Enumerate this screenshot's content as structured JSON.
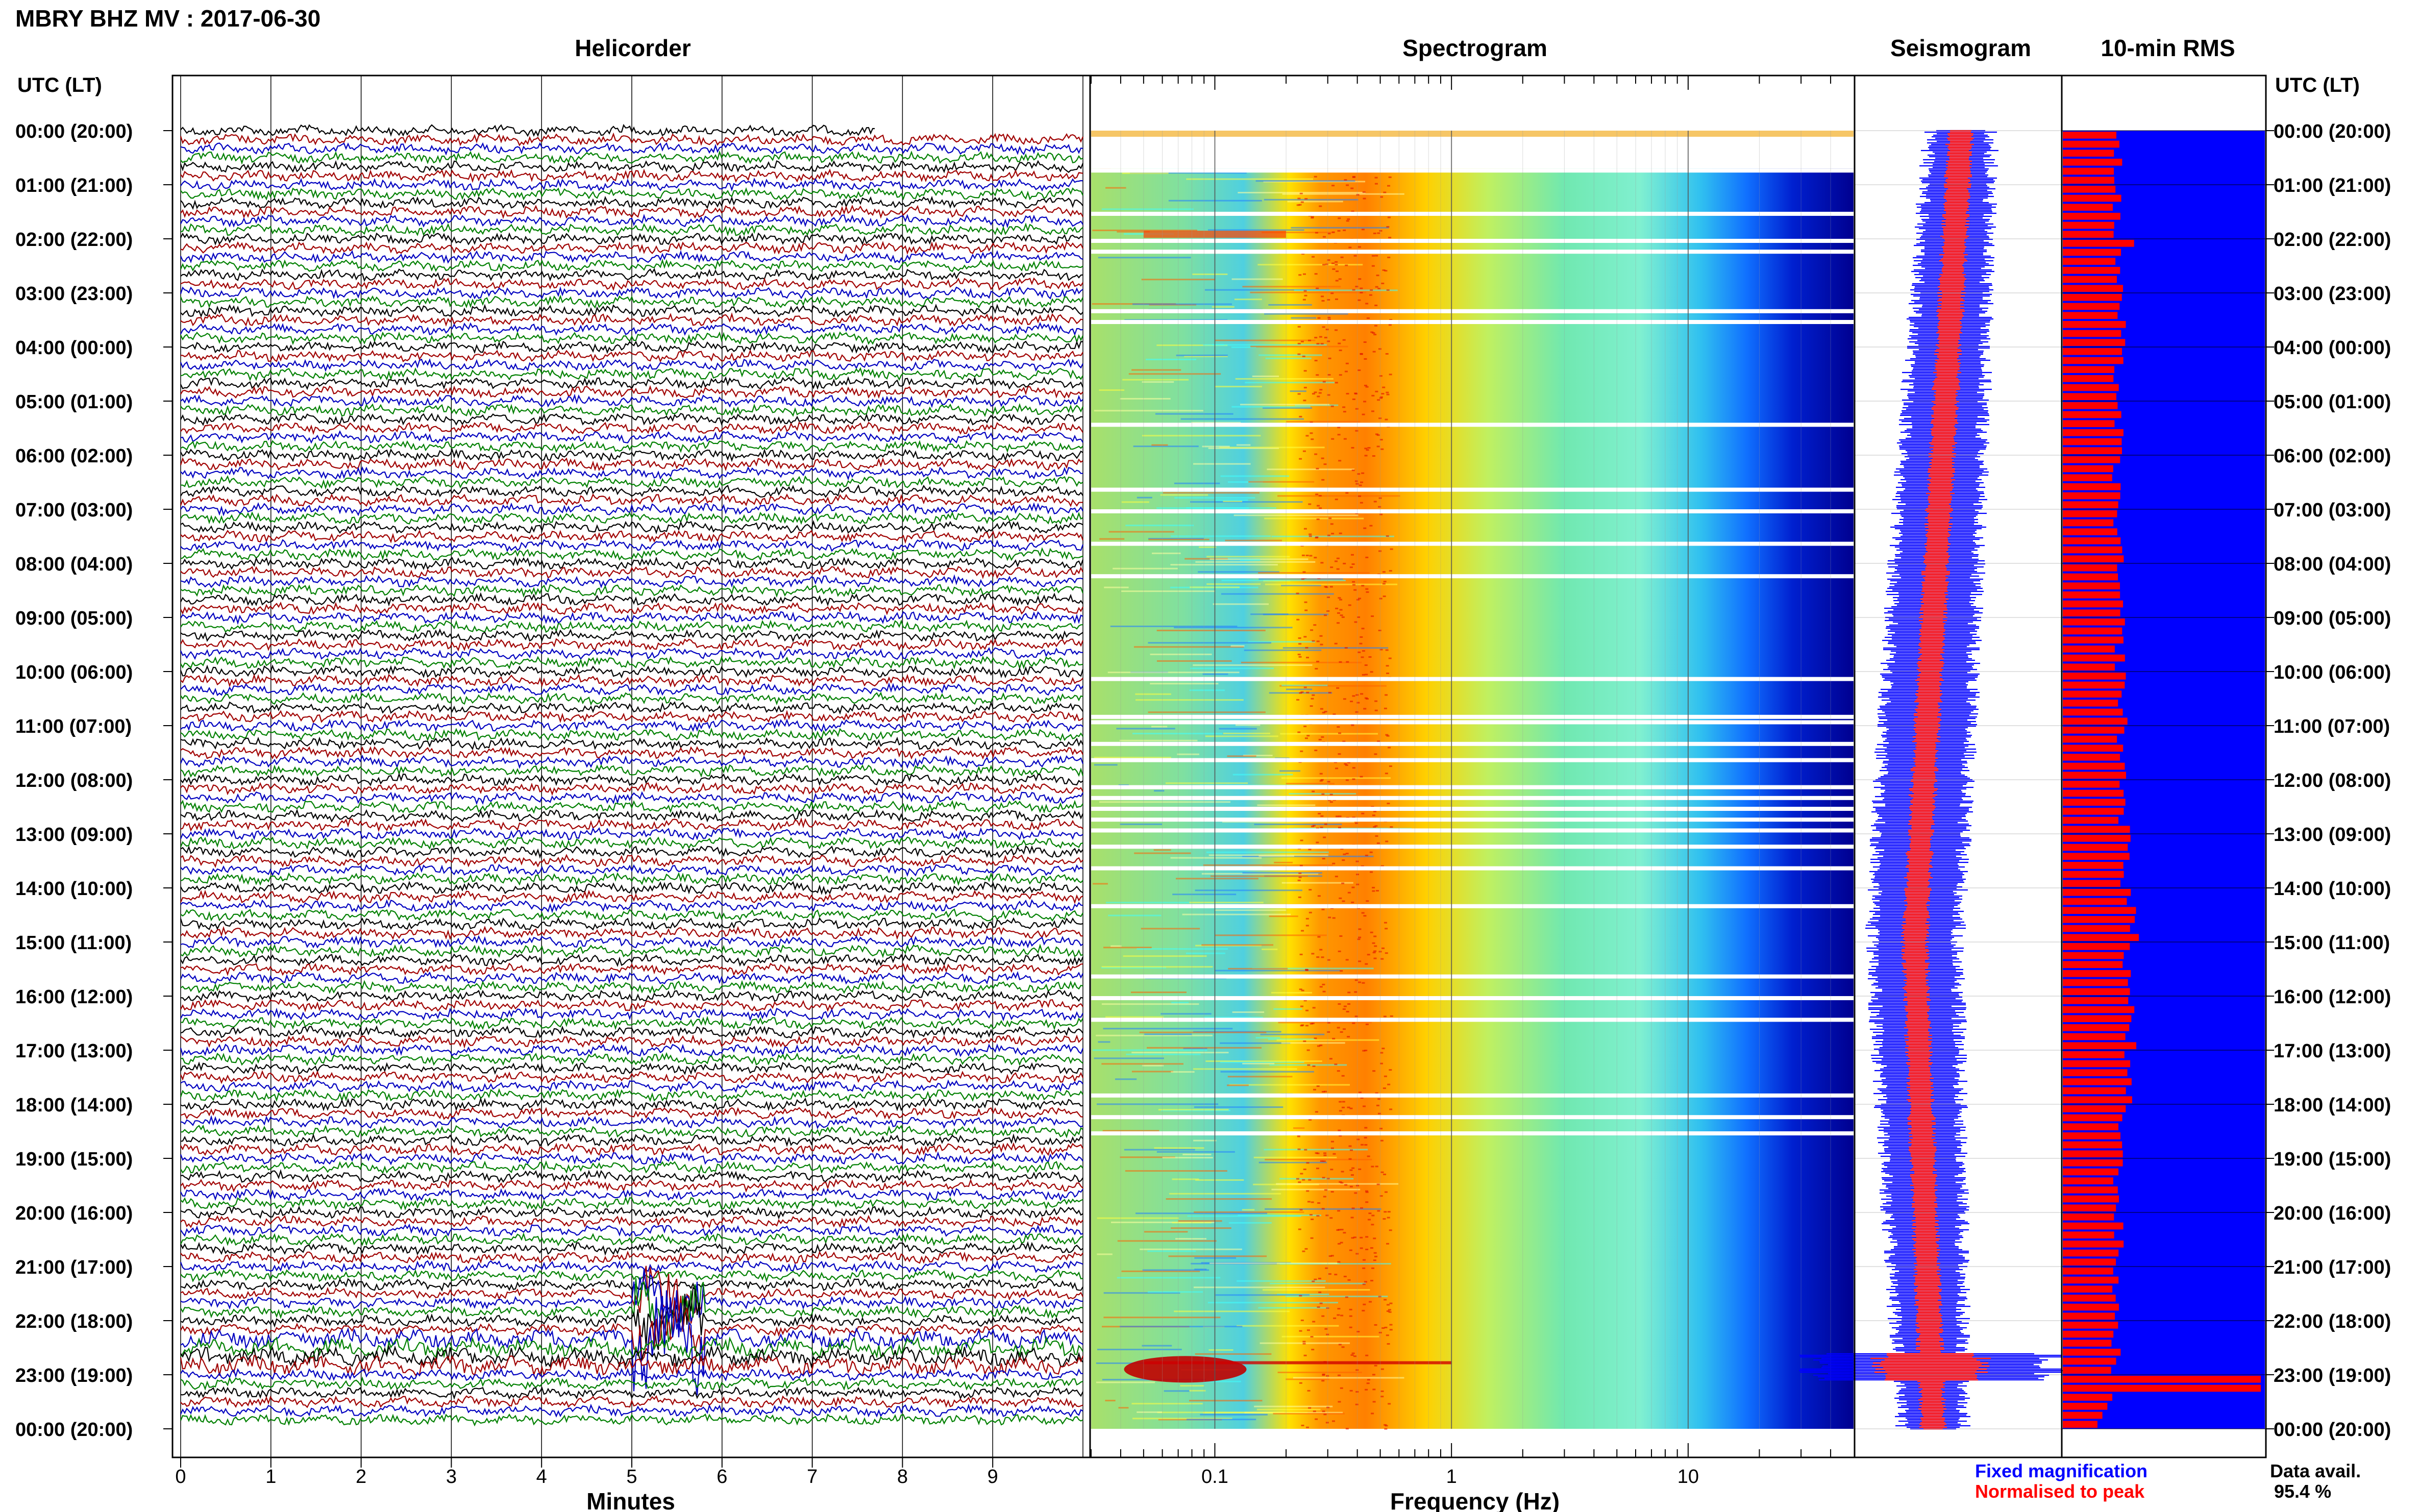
{
  "header": {
    "station_title": "MBRY BHZ MV : 2017-06-30",
    "left_axis_label": "UTC (LT)",
    "right_axis_label": "UTC (LT)"
  },
  "panels": {
    "helicorder_title": "Helicorder",
    "spectrogram_title": "Spectrogram",
    "seismogram_title": "Seismogram",
    "rms_title": "10-min RMS"
  },
  "time_labels": [
    "00:00 (20:00)",
    "01:00 (21:00)",
    "02:00 (22:00)",
    "03:00 (23:00)",
    "04:00 (00:00)",
    "05:00 (01:00)",
    "06:00 (02:00)",
    "07:00 (03:00)",
    "08:00 (04:00)",
    "09:00 (05:00)",
    "10:00 (06:00)",
    "11:00 (07:00)",
    "12:00 (08:00)",
    "13:00 (09:00)",
    "14:00 (10:00)",
    "15:00 (11:00)",
    "16:00 (12:00)",
    "17:00 (13:00)",
    "18:00 (14:00)",
    "19:00 (15:00)",
    "20:00 (16:00)",
    "21:00 (17:00)",
    "22:00 (18:00)",
    "23:00 (19:00)",
    "00:00 (20:00)"
  ],
  "legend": {
    "fixed": "Fixed magnification",
    "normalised": "Normalised to peak",
    "fixed_color": "#0000ff",
    "normalised_color": "#ff0000"
  },
  "data_availability": {
    "label": "Data avail.",
    "value": "95.4 %"
  },
  "chart_data": [
    {
      "type": "line",
      "title": "Helicorder",
      "xlabel": "Minutes",
      "x_ticks": [
        "0",
        "1",
        "2",
        "3",
        "4",
        "5",
        "6",
        "7",
        "8",
        "9"
      ],
      "xlim": [
        0,
        10
      ],
      "trace_colors": [
        "#000000",
        "#a00000",
        "#0000c0",
        "#008000"
      ],
      "events": [
        {
          "time_utc": "22:00",
          "minute_start": 5.0,
          "minute_end": 5.8,
          "note": "large amplitude burst"
        },
        {
          "time_utc": "22:40",
          "minute_start": 0.0,
          "minute_end": 10.0,
          "note": "long-period signal"
        }
      ]
    },
    {
      "type": "heatmap",
      "title": "Spectrogram",
      "xlabel": "Frequency (Hz)",
      "x_scale": "log",
      "x_ticks": [
        "0.1",
        "1",
        "10"
      ],
      "xlim": [
        0.03,
        50
      ],
      "dominant_band_hz": [
        0.2,
        0.5
      ],
      "colorscale": [
        "#00007f",
        "#0000ff",
        "#00ffff",
        "#ffff00",
        "#ff7f00",
        "#ff0000",
        "#7f0000"
      ]
    },
    {
      "type": "line",
      "title": "Seismogram",
      "series": [
        {
          "name": "Fixed magnification",
          "color": "#0000ff"
        },
        {
          "name": "Normalised to peak",
          "color": "#ff0000"
        }
      ]
    },
    {
      "type": "bar",
      "title": "10-min RMS",
      "series": [
        {
          "name": "Fixed magnification",
          "color": "#0000ff"
        },
        {
          "name": "Normalised to peak",
          "color": "#ff0000"
        }
      ],
      "hourly_normalised_rms": [
        0.28,
        0.27,
        0.28,
        0.29,
        0.28,
        0.28,
        0.27,
        0.28,
        0.28,
        0.29,
        0.3,
        0.3,
        0.31,
        0.32,
        0.35,
        0.33,
        0.34,
        0.32,
        0.3,
        0.28,
        0.28,
        0.27,
        0.27,
        1.0
      ]
    }
  ]
}
